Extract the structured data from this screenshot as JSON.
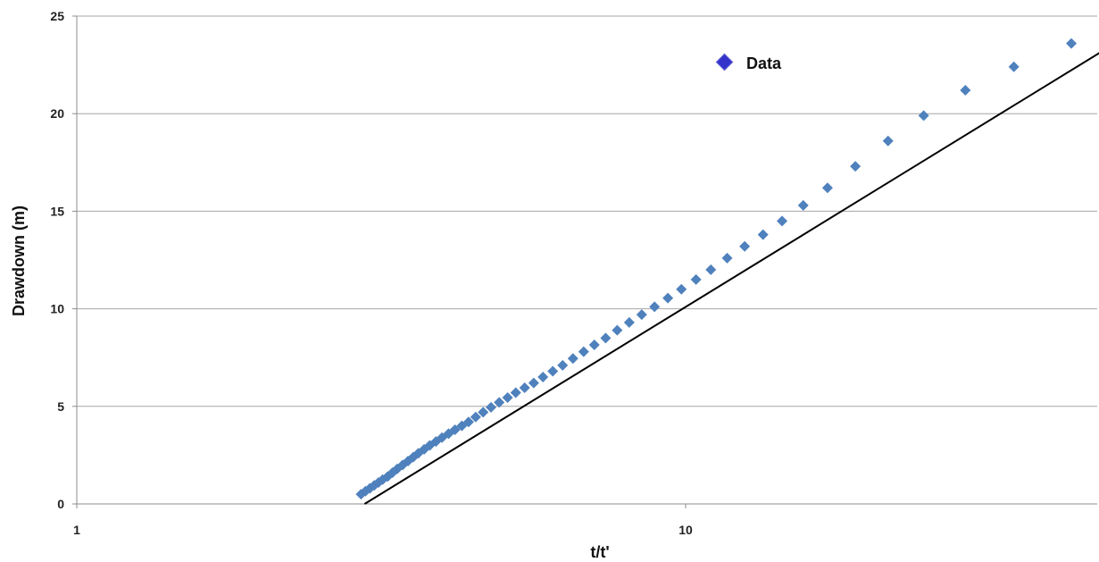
{
  "chart_data": {
    "type": "scatter",
    "xlabel": "t/t'",
    "ylabel": "Drawdown (m)",
    "xscale": "log",
    "xlim": [
      1,
      66
    ],
    "ylim": [
      0,
      25
    ],
    "xticks": [
      "1",
      "10"
    ],
    "yticks": [
      "0",
      "5",
      "10",
      "15",
      "20",
      "25"
    ],
    "grid": "horizontal",
    "legend": {
      "placement": "top-right",
      "entries": [
        "Data"
      ]
    },
    "colors": {
      "marker": "#4f81bd",
      "legend_marker": "#3333cc",
      "fit_line": "#000000",
      "grid": "#a6a6a6"
    },
    "series": [
      {
        "name": "Data",
        "points": [
          [
            2.93,
            0.5
          ],
          [
            2.98,
            0.65
          ],
          [
            3.03,
            0.8
          ],
          [
            3.08,
            0.95
          ],
          [
            3.13,
            1.1
          ],
          [
            3.18,
            1.25
          ],
          [
            3.24,
            1.4
          ],
          [
            3.3,
            1.6
          ],
          [
            3.36,
            1.8
          ],
          [
            3.43,
            2.0
          ],
          [
            3.5,
            2.2
          ],
          [
            3.57,
            2.4
          ],
          [
            3.64,
            2.6
          ],
          [
            3.72,
            2.8
          ],
          [
            3.8,
            3.0
          ],
          [
            3.89,
            3.2
          ],
          [
            3.98,
            3.4
          ],
          [
            4.08,
            3.6
          ],
          [
            4.18,
            3.8
          ],
          [
            4.29,
            4.0
          ],
          [
            4.4,
            4.2
          ],
          [
            4.52,
            4.45
          ],
          [
            4.65,
            4.7
          ],
          [
            4.79,
            4.95
          ],
          [
            4.94,
            5.2
          ],
          [
            5.1,
            5.45
          ],
          [
            5.26,
            5.7
          ],
          [
            5.44,
            5.95
          ],
          [
            5.63,
            6.2
          ],
          [
            5.83,
            6.5
          ],
          [
            6.05,
            6.8
          ],
          [
            6.28,
            7.1
          ],
          [
            6.53,
            7.45
          ],
          [
            6.8,
            7.8
          ],
          [
            7.08,
            8.15
          ],
          [
            7.39,
            8.5
          ],
          [
            7.72,
            8.9
          ],
          [
            8.08,
            9.3
          ],
          [
            8.47,
            9.7
          ],
          [
            8.89,
            10.1
          ],
          [
            9.35,
            10.55
          ],
          [
            9.84,
            11.0
          ],
          [
            10.4,
            11.5
          ],
          [
            11.0,
            12.0
          ],
          [
            11.7,
            12.6
          ],
          [
            12.5,
            13.2
          ],
          [
            13.4,
            13.8
          ],
          [
            14.4,
            14.5
          ],
          [
            15.6,
            15.3
          ],
          [
            17.1,
            16.2
          ],
          [
            19.0,
            17.3
          ],
          [
            21.5,
            18.6
          ],
          [
            24.6,
            19.9
          ],
          [
            28.8,
            21.2
          ],
          [
            34.6,
            22.4
          ],
          [
            43.0,
            23.6
          ]
        ]
      }
    ],
    "fit_line": [
      [
        2.97,
        0.0
      ],
      [
        60.0,
        25.0
      ]
    ]
  }
}
